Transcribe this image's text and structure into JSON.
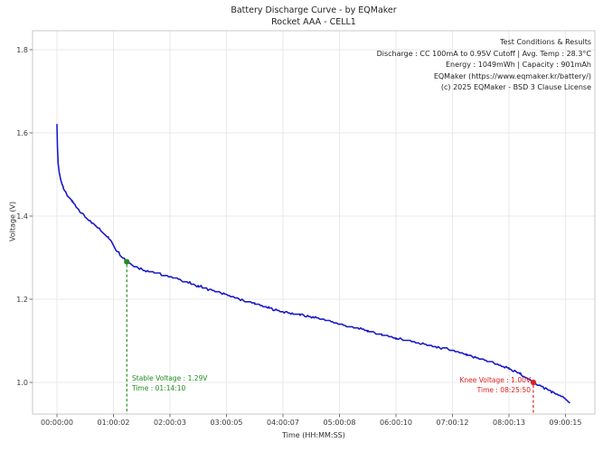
{
  "title": {
    "line1": "Battery Discharge Curve - by EQMaker",
    "line2": "Rocket AAA - CELL1"
  },
  "info_box": {
    "lines": [
      "Test Conditions & Results",
      "Discharge : CC 100mA to 0.95V Cutoff | Avg. Temp : 28.3°C",
      "Energy : 1049mWh | Capacity : 901mAh",
      "EQMaker (https://www.eqmaker.kr/battery/)",
      "(c) 2025 EQMaker - BSD 3 Clause License"
    ]
  },
  "annotations": {
    "stable": {
      "line1": "Stable Voltage : 1.29V",
      "line2": "Time : 01:14:10",
      "t_hours": 1.2361,
      "voltage": 1.29,
      "color": "#228B22"
    },
    "knee": {
      "line1": "Knee Voltage : 1.00V",
      "line2": "Time : 08:25:50",
      "t_hours": 8.4306,
      "voltage": 1.0,
      "color": "#e02020"
    }
  },
  "chart_data": {
    "type": "line",
    "title": "Battery Discharge Curve - by EQMaker | Rocket AAA - CELL1",
    "xlabel": "Time (HH:MM:SS)",
    "ylabel": "Voltage (V)",
    "x_ticks": [
      "00:00:00",
      "01:00:02",
      "02:00:03",
      "03:00:05",
      "04:00:07",
      "05:00:08",
      "06:00:10",
      "07:00:12",
      "08:00:13",
      "09:00:15"
    ],
    "x_tick_hours": [
      0,
      1,
      2,
      3,
      4,
      5,
      6,
      7,
      8,
      9
    ],
    "y_ticks": [
      1.0,
      1.2,
      1.4,
      1.6,
      1.8
    ],
    "ylim": [
      0.92,
      1.85
    ],
    "xlim_hours": [
      -0.43,
      9.52
    ],
    "grid": true,
    "line_color": "#1a1ac8",
    "grid_color": "#e9e9e9",
    "spine_color": "#c8c8c8",
    "tick_color": "#555555",
    "tick_label_color": "#3a3a3a",
    "series": [
      {
        "name": "CELL1 discharge voltage",
        "points": [
          [
            0.0,
            1.62
          ],
          [
            0.008,
            1.57
          ],
          [
            0.02,
            1.527
          ],
          [
            0.04,
            1.505
          ],
          [
            0.07,
            1.485
          ],
          [
            0.112,
            1.467
          ],
          [
            0.18,
            1.449
          ],
          [
            0.272,
            1.435
          ],
          [
            0.36,
            1.42
          ],
          [
            0.45,
            1.406
          ],
          [
            0.59,
            1.387
          ],
          [
            0.75,
            1.369
          ],
          [
            0.91,
            1.348
          ],
          [
            1.07,
            1.315
          ],
          [
            1.2361,
            1.29
          ],
          [
            1.392,
            1.278
          ],
          [
            1.6,
            1.268
          ],
          [
            1.8,
            1.261
          ],
          [
            2.0,
            1.255
          ],
          [
            2.25,
            1.243
          ],
          [
            2.5,
            1.232
          ],
          [
            2.75,
            1.221
          ],
          [
            3.0,
            1.211
          ],
          [
            3.25,
            1.199
          ],
          [
            3.5,
            1.189
          ],
          [
            3.75,
            1.179
          ],
          [
            4.0,
            1.17
          ],
          [
            4.3,
            1.162
          ],
          [
            4.6,
            1.155
          ],
          [
            4.8,
            1.148
          ],
          [
            5.0,
            1.14
          ],
          [
            5.25,
            1.132
          ],
          [
            5.5,
            1.124
          ],
          [
            5.75,
            1.115
          ],
          [
            6.0,
            1.107
          ],
          [
            6.25,
            1.099
          ],
          [
            6.5,
            1.092
          ],
          [
            6.75,
            1.084
          ],
          [
            7.0,
            1.077
          ],
          [
            7.25,
            1.066
          ],
          [
            7.5,
            1.056
          ],
          [
            7.8,
            1.044
          ],
          [
            8.0,
            1.033
          ],
          [
            8.2,
            1.02
          ],
          [
            8.4306,
            1.0
          ],
          [
            8.6,
            0.988
          ],
          [
            8.75,
            0.978
          ],
          [
            8.9,
            0.968
          ],
          [
            9.0,
            0.96
          ],
          [
            9.07,
            0.95
          ]
        ]
      }
    ]
  }
}
